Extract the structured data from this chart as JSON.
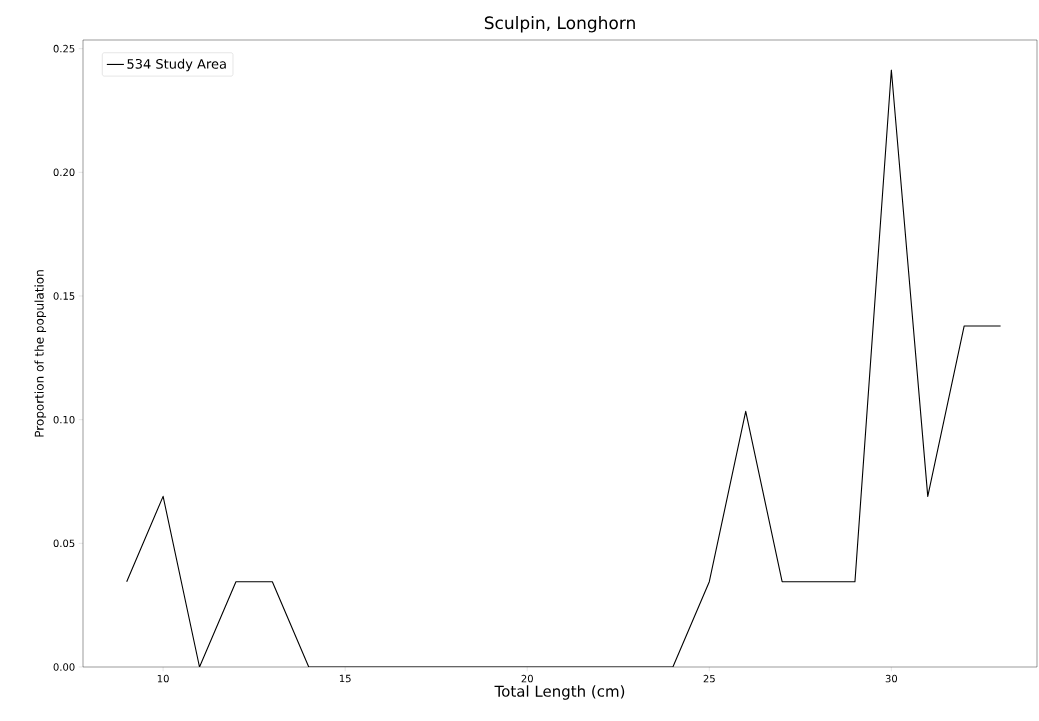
{
  "chart_data": {
    "type": "line",
    "title": "Sculpin, Longhorn",
    "xlabel": "Total Length (cm)",
    "ylabel": "Proportion of the population",
    "x": [
      9,
      10,
      11,
      12,
      13,
      14,
      15,
      16,
      17,
      18,
      19,
      20,
      21,
      22,
      23,
      24,
      25,
      26,
      27,
      28,
      29,
      30,
      31,
      32,
      33
    ],
    "series": [
      {
        "name": "534 Study Area",
        "color": "#000000",
        "values": [
          0.0345,
          0.069,
          0,
          0.0345,
          0.0345,
          0,
          0,
          0,
          0,
          0,
          0,
          0,
          0,
          0,
          0,
          0,
          0.0345,
          0.1034,
          0.0345,
          0.0345,
          0.0345,
          0.2414,
          0.069,
          0.1379,
          0.1379
        ]
      }
    ],
    "xlim": [
      7.8,
      34.0
    ],
    "ylim": [
      0,
      0.2535
    ],
    "xticks": [
      10,
      15,
      20,
      25,
      30
    ],
    "yticks": [
      {
        "value": 0,
        "label": "0.00"
      },
      {
        "value": 0.05,
        "label": "0.05"
      },
      {
        "value": 0.1,
        "label": "0.10"
      },
      {
        "value": 0.15,
        "label": "0.15"
      },
      {
        "value": 0.2,
        "label": "0.20"
      },
      {
        "value": 0.25,
        "label": "0.25"
      }
    ],
    "legend": "top left",
    "grid": false,
    "marker": "none",
    "line_style": "solid"
  }
}
